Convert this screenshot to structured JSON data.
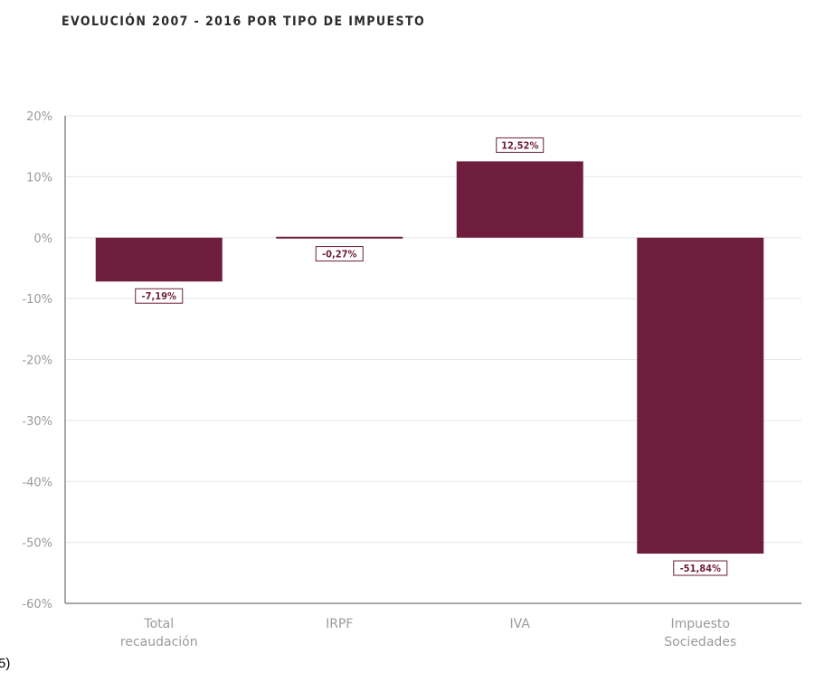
{
  "chart_data": {
    "type": "bar",
    "title": "EVOLUCIÓN 2007 - 2016 POR TIPO DE IMPUESTO",
    "categories": [
      [
        "Total",
        "recaudación"
      ],
      [
        "IRPF"
      ],
      [
        "IVA"
      ],
      [
        "Impuesto",
        "Sociedades"
      ]
    ],
    "values": [
      -7.19,
      -0.27,
      12.52,
      -51.84
    ],
    "data_labels": [
      "-7,19%",
      "-0,27%",
      "12,52%",
      "-51,84%"
    ],
    "ylim": [
      -60,
      20
    ],
    "yticks": [
      20,
      10,
      0,
      -10,
      -20,
      -30,
      -40,
      -50,
      -60
    ],
    "ytick_labels": [
      "20%",
      "10%",
      "0%",
      "-10%",
      "-20%",
      "-30%",
      "-40%",
      "-50%",
      "-60%"
    ],
    "xlabel": "",
    "ylabel": "",
    "grid": true,
    "bar_color": "#6e1d3d",
    "grid_color": "#e6e6e6",
    "axis_color": "#8c8c8c"
  },
  "fragment_text": "5)"
}
